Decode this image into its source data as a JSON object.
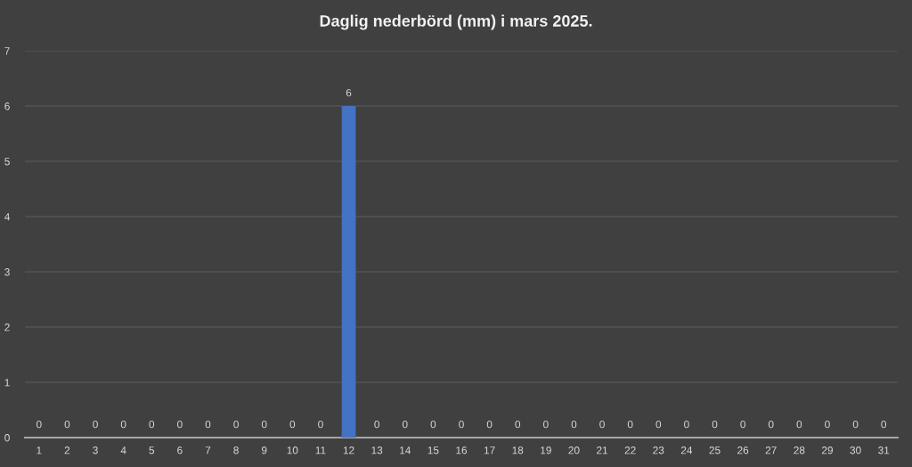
{
  "chart_data": {
    "type": "bar",
    "title": "Daglig nederbörd (mm) i mars 2025.",
    "categories": [
      "1",
      "2",
      "3",
      "4",
      "5",
      "6",
      "7",
      "8",
      "9",
      "10",
      "11",
      "12",
      "13",
      "14",
      "15",
      "16",
      "17",
      "18",
      "19",
      "20",
      "21",
      "22",
      "23",
      "24",
      "25",
      "26",
      "27",
      "28",
      "29",
      "30",
      "31"
    ],
    "values": [
      0,
      0,
      0,
      0,
      0,
      0,
      0,
      0,
      0,
      0,
      0,
      6,
      0,
      0,
      0,
      0,
      0,
      0,
      0,
      0,
      0,
      0,
      0,
      0,
      0,
      0,
      0,
      0,
      0,
      0,
      0
    ],
    "color": "#4472c4",
    "ylim": [
      0,
      7
    ],
    "yticks": [
      0,
      1,
      2,
      3,
      4,
      5,
      6,
      7
    ],
    "grid": "y",
    "data_labels": true
  }
}
